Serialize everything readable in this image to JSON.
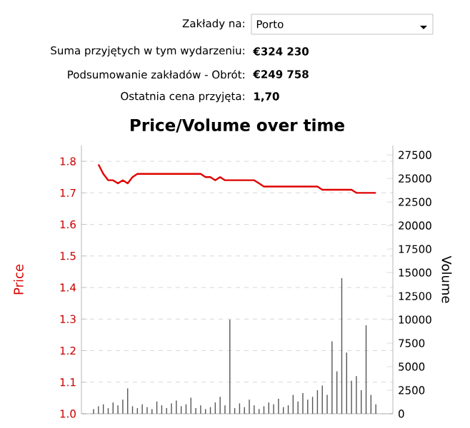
{
  "chart_data": {
    "type": "line",
    "title": "Price/Volume over time",
    "annotations": [
      "Zakłady na:",
      "Porto",
      "Suma przyjętych w tym wydarzeniu:",
      "€324 230",
      "Podsumowanie zakładów - Obrót:",
      "€249 758",
      "Ostatnia cena przyjęta:",
      "1,70"
    ],
    "categories": [
      null,
      null,
      null,
      null,
      null,
      null,
      null,
      null,
      null,
      null,
      null,
      null,
      null,
      null,
      null,
      null,
      null,
      null,
      null,
      null,
      null,
      null,
      null,
      null,
      null,
      null,
      null,
      null,
      null,
      null,
      null,
      null,
      null,
      null,
      null,
      null,
      null,
      null,
      null,
      null,
      null,
      null,
      null,
      null,
      null,
      null,
      null,
      null,
      null,
      null,
      null,
      null,
      null,
      null,
      null,
      null,
      null,
      null,
      null,
      null,
      null,
      null,
      null,
      null
    ],
    "ylabel": "Price",
    "y2label": "Volume",
    "ylim": [
      1.0,
      1.85
    ],
    "yticks": [
      {
        "value": 1.0,
        "label": "1.0"
      },
      1.1,
      1.2,
      1.3,
      1.4,
      1.5,
      1.6,
      1.7,
      1.8
    ],
    "y2lim": [
      0,
      28500
    ],
    "y2ticks": [
      0,
      2500,
      5000,
      7500,
      10000,
      12500,
      15000,
      17500,
      20000,
      22500,
      25000,
      27500
    ],
    "grid": "y",
    "marker": "none",
    "series": [
      {
        "type": "line",
        "color": "#e00000",
        "values": [
          null,
          null,
          null,
          1.79,
          1.76,
          1.74,
          1.74,
          1.73,
          1.74,
          1.73,
          1.75,
          1.76,
          1.76,
          1.76,
          1.76,
          1.76,
          1.76,
          1.76,
          1.76,
          1.76,
          1.76,
          1.76,
          1.76,
          1.76,
          1.76,
          1.75,
          1.75,
          1.74,
          1.75,
          1.74,
          1.74,
          1.74,
          1.74,
          1.74,
          1.74,
          1.74,
          1.73,
          1.72,
          1.72,
          1.72,
          1.72,
          1.72,
          1.72,
          1.72,
          1.72,
          1.72,
          1.72,
          1.72,
          1.72,
          1.71,
          1.71,
          1.71,
          1.71,
          1.71,
          1.71,
          1.71,
          1.7,
          1.7,
          1.7,
          1.7,
          1.7,
          null,
          null,
          null
        ]
      },
      {
        "type": "bar",
        "axis": "y2",
        "color": "#555555",
        "values": [
          null,
          null,
          500,
          800,
          1000,
          600,
          1200,
          900,
          1500,
          2700,
          800,
          600,
          1000,
          700,
          500,
          1300,
          900,
          600,
          1100,
          1400,
          800,
          1000,
          1700,
          600,
          900,
          500,
          700,
          1200,
          1800,
          900,
          10000,
          600,
          1100,
          700,
          1500,
          900,
          500,
          800,
          1200,
          1000,
          1600,
          700,
          900,
          2000,
          1300,
          2200,
          1500,
          1800,
          2500,
          3000,
          2000,
          7700,
          4500,
          14400,
          6500,
          3500,
          4000,
          2500,
          9400,
          2000,
          1000,
          null,
          null,
          null
        ]
      }
    ]
  }
}
